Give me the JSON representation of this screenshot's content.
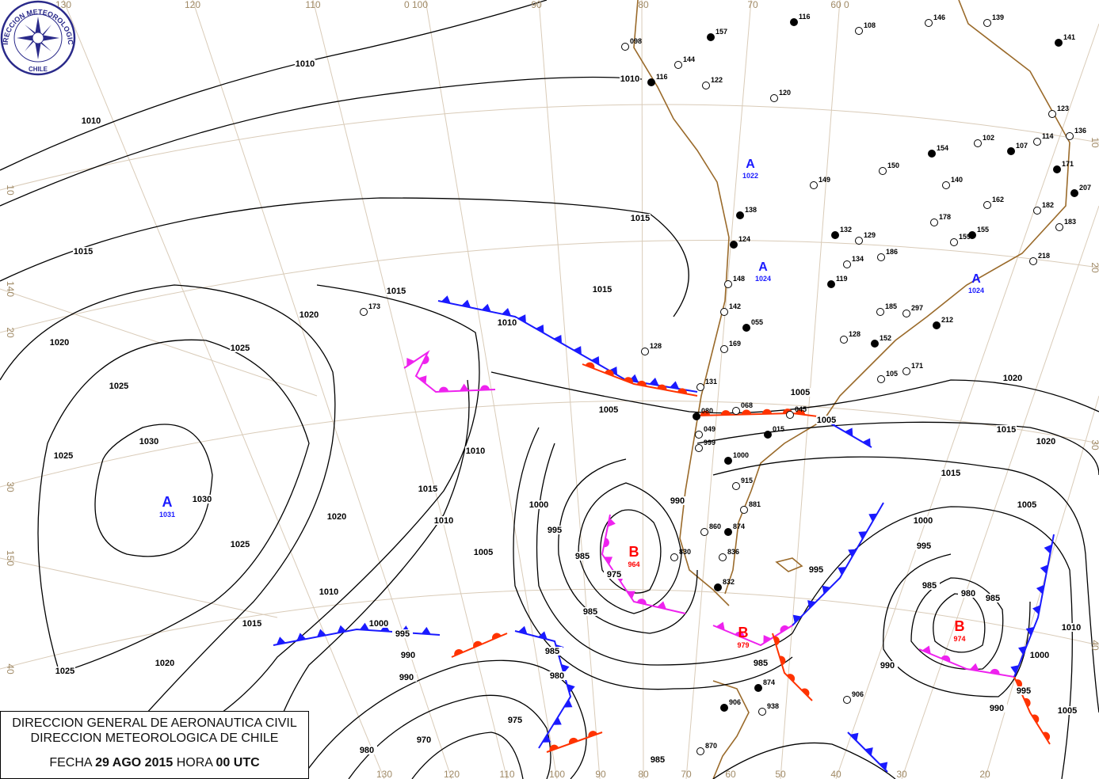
{
  "header": {
    "org_line1": "DIRECCION GENERAL DE AERONAUTICA CIVIL",
    "org_line2": "DIRECCION METEOROLOGICA DE CHILE",
    "date_prefix": "FECHA",
    "date": "29 AGO 2015",
    "hour_prefix": "HORA",
    "hour": "00 UTC"
  },
  "logo": {
    "text_top": "DIRECCION METEOROLOGICA",
    "text_bottom": "CHILE",
    "color": "#2a2a8a"
  },
  "grid_labels": {
    "top": [
      "130",
      "120",
      "110",
      "0 100",
      "90",
      "80",
      "70",
      "60 0"
    ],
    "left": [
      "10",
      "140",
      "20",
      "30",
      "150",
      "40"
    ],
    "bottom": [
      "130",
      "120",
      "110",
      "100",
      "90",
      "80",
      "70",
      "60",
      "50",
      "40",
      "30",
      "20"
    ],
    "right": [
      "10",
      "20",
      "30",
      "40"
    ]
  },
  "pressure_centers": [
    {
      "type": "A",
      "value": "1031",
      "color": "#1a1aff"
    },
    {
      "type": "B",
      "value": "964",
      "color": "#ff0000"
    },
    {
      "type": "B",
      "value": "979",
      "color": "#ff0000"
    },
    {
      "type": "B",
      "value": "974",
      "color": "#ff0000"
    },
    {
      "type": "A",
      "value": "1022",
      "color": "#1a1aff"
    },
    {
      "type": "A",
      "value": "1024",
      "color": "#1a1aff"
    },
    {
      "type": "A",
      "value": "1024",
      "color": "#1a1aff"
    }
  ],
  "isobar_labels": [
    "1010",
    "1010",
    "1010",
    "1015",
    "1015",
    "1015",
    "1015",
    "1020",
    "1020",
    "1025",
    "1025",
    "1025",
    "1030",
    "1030",
    "1025",
    "1020",
    "1015",
    "1010",
    "1015",
    "1025",
    "1020",
    "1010",
    "1005",
    "1005",
    "1000",
    "995",
    "990",
    "985",
    "975",
    "985",
    "990",
    "995",
    "1000",
    "1010",
    "1015",
    "1020",
    "1005",
    "1005",
    "1000",
    "995",
    "985",
    "980",
    "985",
    "990",
    "1000",
    "1010",
    "1005",
    "995",
    "990",
    "985",
    "975",
    "970",
    "980",
    "985",
    "1010",
    "1015",
    "1020",
    "1005",
    "995",
    "985",
    "980",
    "990"
  ],
  "fronts": {
    "cold_color": "#1a1aff",
    "warm_color": "#ff3300",
    "occluded_color": "#ee22ee"
  },
  "stations": [
    "157",
    "144",
    "122",
    "116",
    "098",
    "120",
    "138",
    "128",
    "173",
    "124",
    "148",
    "142",
    "055",
    "169",
    "131",
    "080",
    "068",
    "045",
    "015",
    "049",
    "999",
    "1000",
    "915",
    "881",
    "874",
    "860",
    "836",
    "832",
    "830",
    "906",
    "874",
    "938",
    "870",
    "906",
    "149",
    "140",
    "132",
    "129",
    "134",
    "119",
    "105",
    "171",
    "152",
    "128",
    "178",
    "155",
    "183",
    "182",
    "171",
    "136",
    "123",
    "141",
    "139",
    "146",
    "116",
    "108",
    "102",
    "107",
    "114",
    "150",
    "154",
    "162",
    "186",
    "207",
    "218",
    "297",
    "212",
    "185",
    "159"
  ],
  "colors": {
    "isobar": "#000000",
    "coast": "#9a6a2a",
    "grid": "#d9cbb8",
    "grid_label": "#a08a66"
  }
}
